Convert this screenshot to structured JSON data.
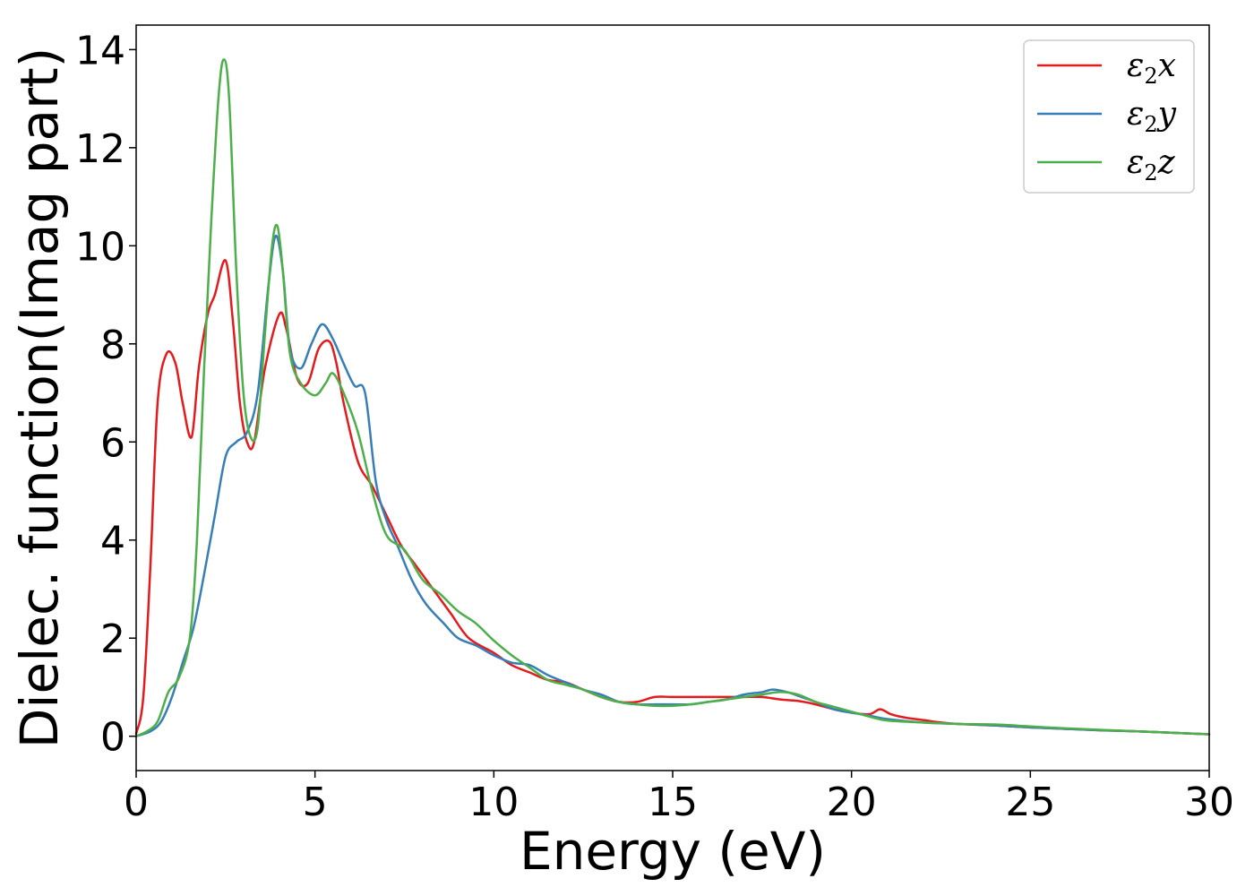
{
  "chart_data": {
    "type": "line",
    "title": "",
    "xlabel": "Energy (eV)",
    "ylabel": "Dielec. function(Imag part)",
    "xlim": [
      0,
      30
    ],
    "ylim": [
      -0.7,
      14.5
    ],
    "xticks": [
      0,
      5,
      10,
      15,
      20,
      25,
      30
    ],
    "yticks": [
      0,
      2,
      4,
      6,
      8,
      10,
      12,
      14
    ],
    "grid": false,
    "legend_position": "top-right",
    "series": [
      {
        "name": "ε2x",
        "symbol": "ε",
        "subscript": "2",
        "suffix": "x",
        "color": "#e41a1c",
        "points": [
          [
            0,
            0.05
          ],
          [
            0.2,
            0.8
          ],
          [
            0.4,
            3.5
          ],
          [
            0.6,
            6.8
          ],
          [
            0.85,
            7.8
          ],
          [
            1.1,
            7.6
          ],
          [
            1.3,
            6.8
          ],
          [
            1.55,
            6.1
          ],
          [
            1.75,
            7.5
          ],
          [
            2.0,
            8.6
          ],
          [
            2.2,
            9.0
          ],
          [
            2.5,
            9.7
          ],
          [
            2.7,
            8.5
          ],
          [
            2.9,
            6.8
          ],
          [
            3.1,
            6.0
          ],
          [
            3.3,
            6.0
          ],
          [
            3.6,
            7.5
          ],
          [
            4.0,
            8.6
          ],
          [
            4.2,
            8.3
          ],
          [
            4.5,
            7.3
          ],
          [
            4.8,
            7.2
          ],
          [
            5.1,
            7.9
          ],
          [
            5.4,
            8.05
          ],
          [
            5.6,
            7.6
          ],
          [
            5.8,
            6.8
          ],
          [
            6.2,
            5.6
          ],
          [
            6.6,
            5.1
          ],
          [
            7.0,
            4.5
          ],
          [
            7.4,
            3.9
          ],
          [
            7.8,
            3.5
          ],
          [
            8.3,
            3.0
          ],
          [
            8.8,
            2.5
          ],
          [
            9.3,
            2.0
          ],
          [
            10.0,
            1.7
          ],
          [
            10.5,
            1.45
          ],
          [
            11.0,
            1.3
          ],
          [
            11.5,
            1.15
          ],
          [
            12.0,
            1.1
          ],
          [
            12.5,
            0.95
          ],
          [
            13.0,
            0.8
          ],
          [
            13.5,
            0.7
          ],
          [
            14.0,
            0.7
          ],
          [
            14.5,
            0.8
          ],
          [
            15.0,
            0.8
          ],
          [
            15.5,
            0.8
          ],
          [
            16.0,
            0.8
          ],
          [
            16.5,
            0.8
          ],
          [
            17.0,
            0.8
          ],
          [
            17.5,
            0.8
          ],
          [
            18.0,
            0.75
          ],
          [
            18.5,
            0.72
          ],
          [
            19.0,
            0.65
          ],
          [
            19.5,
            0.55
          ],
          [
            20.0,
            0.48
          ],
          [
            20.5,
            0.45
          ],
          [
            20.8,
            0.55
          ],
          [
            21.1,
            0.45
          ],
          [
            21.5,
            0.38
          ],
          [
            22.0,
            0.33
          ],
          [
            22.5,
            0.28
          ],
          [
            23.0,
            0.25
          ],
          [
            24.0,
            0.22
          ],
          [
            25.0,
            0.18
          ],
          [
            26.0,
            0.15
          ],
          [
            27.0,
            0.12
          ],
          [
            28.0,
            0.1
          ],
          [
            29.0,
            0.07
          ],
          [
            30.0,
            0.04
          ]
        ]
      },
      {
        "name": "ε2y",
        "symbol": "ε",
        "subscript": "2",
        "suffix": "y",
        "color": "#377eb8",
        "points": [
          [
            0,
            0.0
          ],
          [
            0.4,
            0.1
          ],
          [
            0.7,
            0.3
          ],
          [
            1.0,
            0.8
          ],
          [
            1.3,
            1.5
          ],
          [
            1.6,
            2.2
          ],
          [
            1.9,
            3.3
          ],
          [
            2.2,
            4.5
          ],
          [
            2.5,
            5.7
          ],
          [
            2.8,
            6.0
          ],
          [
            3.1,
            6.2
          ],
          [
            3.4,
            7.0
          ],
          [
            3.7,
            9.2
          ],
          [
            3.9,
            10.2
          ],
          [
            4.1,
            9.5
          ],
          [
            4.3,
            7.9
          ],
          [
            4.6,
            7.5
          ],
          [
            4.9,
            8.0
          ],
          [
            5.2,
            8.4
          ],
          [
            5.5,
            8.1
          ],
          [
            5.8,
            7.6
          ],
          [
            6.1,
            7.15
          ],
          [
            6.4,
            7.0
          ],
          [
            6.7,
            5.2
          ],
          [
            7.0,
            4.4
          ],
          [
            7.3,
            3.9
          ],
          [
            7.7,
            3.2
          ],
          [
            8.1,
            2.7
          ],
          [
            8.6,
            2.3
          ],
          [
            9.0,
            2.0
          ],
          [
            9.5,
            1.85
          ],
          [
            10.0,
            1.65
          ],
          [
            10.5,
            1.5
          ],
          [
            11.0,
            1.45
          ],
          [
            11.5,
            1.25
          ],
          [
            12.0,
            1.1
          ],
          [
            12.5,
            0.95
          ],
          [
            13.0,
            0.85
          ],
          [
            13.5,
            0.7
          ],
          [
            14.0,
            0.65
          ],
          [
            14.5,
            0.65
          ],
          [
            15.0,
            0.65
          ],
          [
            15.5,
            0.65
          ],
          [
            16.0,
            0.7
          ],
          [
            16.5,
            0.75
          ],
          [
            17.0,
            0.85
          ],
          [
            17.5,
            0.9
          ],
          [
            17.8,
            0.95
          ],
          [
            18.2,
            0.9
          ],
          [
            18.6,
            0.8
          ],
          [
            19.0,
            0.7
          ],
          [
            19.5,
            0.55
          ],
          [
            20.0,
            0.48
          ],
          [
            20.5,
            0.42
          ],
          [
            21.0,
            0.35
          ],
          [
            22.0,
            0.28
          ],
          [
            23.0,
            0.25
          ],
          [
            24.0,
            0.22
          ],
          [
            25.0,
            0.18
          ],
          [
            26.0,
            0.15
          ],
          [
            27.0,
            0.12
          ],
          [
            28.0,
            0.1
          ],
          [
            29.0,
            0.07
          ],
          [
            30.0,
            0.04
          ]
        ]
      },
      {
        "name": "ε2z",
        "symbol": "ε",
        "subscript": "2",
        "suffix": "z",
        "color": "#4daf4a",
        "points": [
          [
            0,
            0.0
          ],
          [
            0.3,
            0.1
          ],
          [
            0.6,
            0.3
          ],
          [
            0.9,
            0.9
          ],
          [
            1.2,
            1.2
          ],
          [
            1.5,
            2.0
          ],
          [
            1.7,
            4.0
          ],
          [
            1.9,
            7.5
          ],
          [
            2.1,
            10.5
          ],
          [
            2.3,
            13.0
          ],
          [
            2.45,
            13.8
          ],
          [
            2.6,
            13.0
          ],
          [
            2.8,
            9.5
          ],
          [
            3.0,
            7.0
          ],
          [
            3.2,
            6.1
          ],
          [
            3.4,
            6.3
          ],
          [
            3.6,
            8.2
          ],
          [
            3.8,
            10.0
          ],
          [
            3.95,
            10.4
          ],
          [
            4.1,
            9.5
          ],
          [
            4.3,
            7.8
          ],
          [
            4.6,
            7.2
          ],
          [
            5.0,
            6.95
          ],
          [
            5.3,
            7.2
          ],
          [
            5.5,
            7.4
          ],
          [
            5.8,
            7.0
          ],
          [
            6.2,
            6.2
          ],
          [
            6.6,
            5.0
          ],
          [
            7.0,
            4.1
          ],
          [
            7.5,
            3.8
          ],
          [
            8.0,
            3.2
          ],
          [
            8.5,
            2.9
          ],
          [
            9.0,
            2.55
          ],
          [
            9.5,
            2.3
          ],
          [
            10.0,
            1.95
          ],
          [
            10.5,
            1.65
          ],
          [
            11.0,
            1.4
          ],
          [
            11.5,
            1.15
          ],
          [
            12.0,
            1.05
          ],
          [
            12.5,
            0.95
          ],
          [
            13.0,
            0.8
          ],
          [
            13.5,
            0.7
          ],
          [
            14.0,
            0.65
          ],
          [
            14.5,
            0.62
          ],
          [
            15.0,
            0.62
          ],
          [
            15.5,
            0.65
          ],
          [
            16.0,
            0.7
          ],
          [
            16.5,
            0.75
          ],
          [
            17.0,
            0.8
          ],
          [
            17.5,
            0.85
          ],
          [
            18.0,
            0.9
          ],
          [
            18.5,
            0.85
          ],
          [
            19.0,
            0.7
          ],
          [
            19.5,
            0.6
          ],
          [
            20.0,
            0.5
          ],
          [
            20.5,
            0.4
          ],
          [
            21.0,
            0.32
          ],
          [
            22.0,
            0.28
          ],
          [
            23.0,
            0.25
          ],
          [
            24.0,
            0.24
          ],
          [
            25.0,
            0.2
          ],
          [
            26.0,
            0.16
          ],
          [
            27.0,
            0.13
          ],
          [
            28.0,
            0.1
          ],
          [
            29.0,
            0.07
          ],
          [
            30.0,
            0.04
          ]
        ]
      }
    ]
  }
}
